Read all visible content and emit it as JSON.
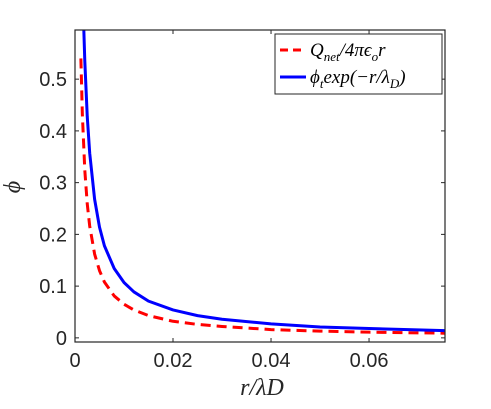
{
  "chart_data": {
    "type": "line",
    "title": "",
    "xlabel": "r/λD",
    "ylabel": "ϕ",
    "xlim": [
      0,
      0.0755
    ],
    "ylim": [
      -0.008,
      0.595
    ],
    "xticks": [
      0,
      0.02,
      0.04,
      0.06
    ],
    "xtick_labels": [
      "0",
      "0.02",
      "0.04",
      "0.06"
    ],
    "yticks": [
      0,
      0.1,
      0.2,
      0.3,
      0.4,
      0.5
    ],
    "ytick_labels": [
      "0",
      "0.1",
      "0.2",
      "0.3",
      "0.4",
      "0.5"
    ],
    "grid": false,
    "legend_position": "top-right",
    "series": [
      {
        "name": "Qnet/4πϵor",
        "legend_main": "Q",
        "legend_sub": "net",
        "legend_rest": "/4πϵ",
        "legend_sub2": "o",
        "legend_tail": "r",
        "color": "#ff0000",
        "style": "dashed",
        "x": [
          0.0012,
          0.0015,
          0.002,
          0.0025,
          0.003,
          0.004,
          0.005,
          0.006,
          0.008,
          0.01,
          0.012,
          0.015,
          0.02,
          0.025,
          0.03,
          0.04,
          0.05,
          0.06,
          0.0755
        ],
        "y": [
          0.54,
          0.432,
          0.324,
          0.259,
          0.216,
          0.162,
          0.13,
          0.108,
          0.081,
          0.065,
          0.054,
          0.043,
          0.032,
          0.026,
          0.022,
          0.016,
          0.013,
          0.011,
          0.009
        ]
      },
      {
        "name": "ϕtexp(−r/λD)",
        "legend_main": "ϕ",
        "legend_sub": "t",
        "legend_rest": "exp(−r/λ",
        "legend_sub2": "D",
        "legend_tail": ")",
        "color": "#0000ff",
        "style": "solid",
        "x": [
          0.0018,
          0.002,
          0.0025,
          0.003,
          0.004,
          0.005,
          0.006,
          0.008,
          0.01,
          0.012,
          0.015,
          0.02,
          0.025,
          0.03,
          0.04,
          0.05,
          0.06,
          0.0755
        ],
        "y": [
          0.595,
          0.535,
          0.428,
          0.357,
          0.268,
          0.214,
          0.178,
          0.134,
          0.107,
          0.089,
          0.071,
          0.054,
          0.043,
          0.036,
          0.027,
          0.021,
          0.018,
          0.014
        ]
      }
    ]
  }
}
